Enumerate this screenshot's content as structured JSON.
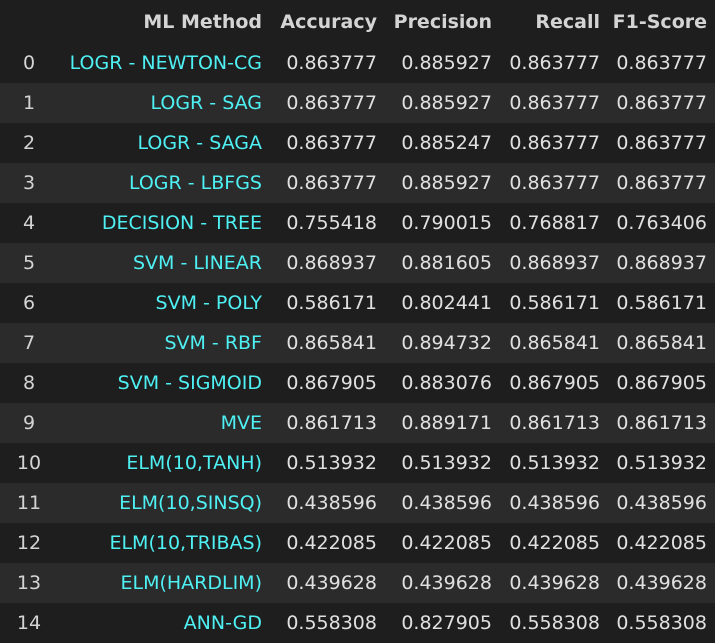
{
  "table": {
    "columns": [
      "",
      "ML Method",
      "Accuracy",
      "Precision",
      "Recall",
      "F1-Score"
    ],
    "rows": [
      {
        "index": "0",
        "method": "LOGR - NEWTON-CG",
        "accuracy": "0.863777",
        "precision": "0.885927",
        "recall": "0.863777",
        "f1": "0.863777"
      },
      {
        "index": "1",
        "method": "LOGR - SAG",
        "accuracy": "0.863777",
        "precision": "0.885927",
        "recall": "0.863777",
        "f1": "0.863777"
      },
      {
        "index": "2",
        "method": "LOGR - SAGA",
        "accuracy": "0.863777",
        "precision": "0.885247",
        "recall": "0.863777",
        "f1": "0.863777"
      },
      {
        "index": "3",
        "method": "LOGR - LBFGS",
        "accuracy": "0.863777",
        "precision": "0.885927",
        "recall": "0.863777",
        "f1": "0.863777"
      },
      {
        "index": "4",
        "method": "DECISION - TREE",
        "accuracy": "0.755418",
        "precision": "0.790015",
        "recall": "0.768817",
        "f1": "0.763406"
      },
      {
        "index": "5",
        "method": "SVM - LINEAR",
        "accuracy": "0.868937",
        "precision": "0.881605",
        "recall": "0.868937",
        "f1": "0.868937"
      },
      {
        "index": "6",
        "method": "SVM - POLY",
        "accuracy": "0.586171",
        "precision": "0.802441",
        "recall": "0.586171",
        "f1": "0.586171"
      },
      {
        "index": "7",
        "method": "SVM - RBF",
        "accuracy": "0.865841",
        "precision": "0.894732",
        "recall": "0.865841",
        "f1": "0.865841"
      },
      {
        "index": "8",
        "method": "SVM - SIGMOID",
        "accuracy": "0.867905",
        "precision": "0.883076",
        "recall": "0.867905",
        "f1": "0.867905"
      },
      {
        "index": "9",
        "method": "MVE",
        "accuracy": "0.861713",
        "precision": "0.889171",
        "recall": "0.861713",
        "f1": "0.861713"
      },
      {
        "index": "10",
        "method": "ELM(10,TANH)",
        "accuracy": "0.513932",
        "precision": "0.513932",
        "recall": "0.513932",
        "f1": "0.513932"
      },
      {
        "index": "11",
        "method": "ELM(10,SINSQ)",
        "accuracy": "0.438596",
        "precision": "0.438596",
        "recall": "0.438596",
        "f1": "0.438596"
      },
      {
        "index": "12",
        "method": "ELM(10,TRIBAS)",
        "accuracy": "0.422085",
        "precision": "0.422085",
        "recall": "0.422085",
        "f1": "0.422085"
      },
      {
        "index": "13",
        "method": "ELM(HARDLIM)",
        "accuracy": "0.439628",
        "precision": "0.439628",
        "recall": "0.439628",
        "f1": "0.439628"
      },
      {
        "index": "14",
        "method": "ANN-GD",
        "accuracy": "0.558308",
        "precision": "0.827905",
        "recall": "0.558308",
        "f1": "0.558308"
      }
    ]
  },
  "colors": {
    "background": "#1e1e1e",
    "stripe": "#2b2b2b",
    "method_text": "#4ff0f3",
    "text": "#e0e0e0"
  }
}
